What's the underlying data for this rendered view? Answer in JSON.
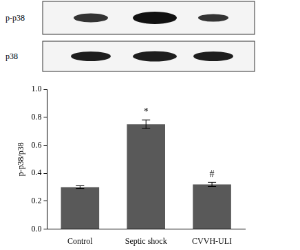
{
  "chart_data": {
    "type": "bar",
    "y_label": "p-p38/p38",
    "categories": [
      "Control",
      "Septic shock",
      "CVVH-ULI"
    ],
    "values": [
      0.3,
      0.75,
      0.32
    ],
    "errors": [
      0.01,
      0.03,
      0.015
    ],
    "color": "#595959",
    "ylim": [
      0,
      1.0
    ],
    "yticks": [
      {
        "value": 0,
        "label": "0.0"
      },
      0.2,
      0.4,
      0.6,
      0.8,
      {
        "value": 1.0,
        "label": "1.0"
      }
    ],
    "grid": false,
    "annotations": [
      {
        "category": "Septic shock",
        "text": "*"
      },
      {
        "category": "CVVH-ULI",
        "text": "#"
      }
    ]
  },
  "blot": {
    "rows": [
      "p-p38",
      "p38"
    ]
  }
}
